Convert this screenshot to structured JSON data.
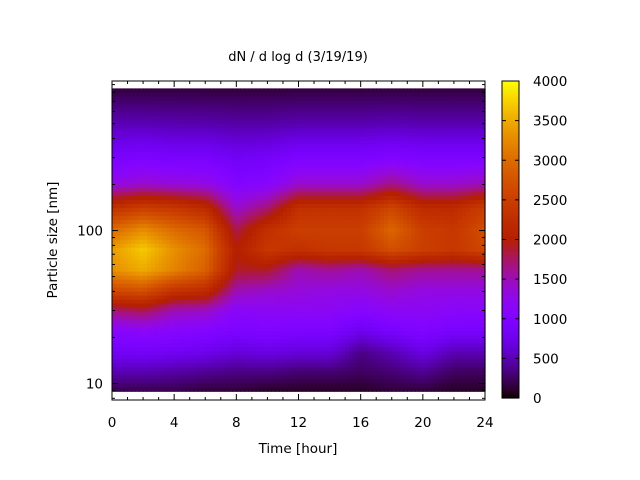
{
  "chart_data": {
    "type": "heatmap",
    "title": "dN / d log d (3/19/19)",
    "xlabel": "Time [hour]",
    "ylabel": "Particle size [nm]",
    "xlim": [
      0,
      24
    ],
    "ylim": [
      7.8,
      950
    ],
    "yscale": "log",
    "x_ticks": [
      "0",
      "4",
      "8",
      "12",
      "16",
      "20",
      "24"
    ],
    "y_ticks": [
      "10",
      "100"
    ],
    "colorbar": {
      "range": [
        0,
        4000
      ],
      "ticks": [
        "0",
        "500",
        "1000",
        "1500",
        "2000",
        "2500",
        "3000",
        "3500",
        "4000"
      ],
      "palette": "black-purple-red-orange-yellow"
    },
    "x": [
      0,
      2,
      4,
      6,
      8,
      10,
      12,
      14,
      16,
      18,
      20,
      22,
      24
    ],
    "y": [
      9,
      12,
      16,
      22,
      30,
      40,
      55,
      75,
      100,
      140,
      200,
      300,
      500,
      850
    ],
    "values": [
      [
        200,
        500,
        800,
        1100,
        1700,
        2600,
        3300,
        3400,
        3000,
        2300,
        1300,
        900,
        500,
        150
      ],
      [
        200,
        500,
        850,
        1150,
        1800,
        2700,
        3500,
        3700,
        3300,
        2500,
        1400,
        950,
        500,
        150
      ],
      [
        200,
        450,
        800,
        1100,
        1500,
        2300,
        3200,
        3300,
        3000,
        2400,
        1350,
        900,
        480,
        150
      ],
      [
        150,
        400,
        750,
        1050,
        1450,
        2200,
        2900,
        3000,
        2800,
        2200,
        1300,
        900,
        470,
        150
      ],
      [
        150,
        350,
        650,
        950,
        1150,
        1500,
        1900,
        2000,
        1800,
        1400,
        1050,
        800,
        450,
        150
      ],
      [
        100,
        350,
        700,
        1000,
        1200,
        1400,
        1900,
        2400,
        2300,
        1700,
        1100,
        850,
        450,
        150
      ],
      [
        100,
        300,
        650,
        950,
        1200,
        1350,
        1500,
        2300,
        2500,
        2300,
        1400,
        950,
        480,
        150
      ],
      [
        100,
        300,
        650,
        950,
        1200,
        1300,
        1600,
        2400,
        2500,
        2300,
        1400,
        950,
        480,
        150
      ],
      [
        100,
        250,
        350,
        750,
        1100,
        1300,
        1500,
        2400,
        2500,
        2300,
        1400,
        950,
        480,
        150
      ],
      [
        150,
        300,
        500,
        900,
        1200,
        1400,
        1700,
        2700,
        2950,
        2600,
        1650,
        1000,
        500,
        150
      ],
      [
        150,
        400,
        700,
        1000,
        1200,
        1300,
        1600,
        2500,
        2500,
        2200,
        1400,
        950,
        480,
        150
      ],
      [
        100,
        250,
        500,
        900,
        1150,
        1300,
        1600,
        2400,
        2400,
        2200,
        1400,
        950,
        480,
        150
      ],
      [
        100,
        250,
        500,
        900,
        1150,
        1300,
        1600,
        2600,
        2700,
        2500,
        1500,
        950,
        480,
        150
      ]
    ]
  }
}
